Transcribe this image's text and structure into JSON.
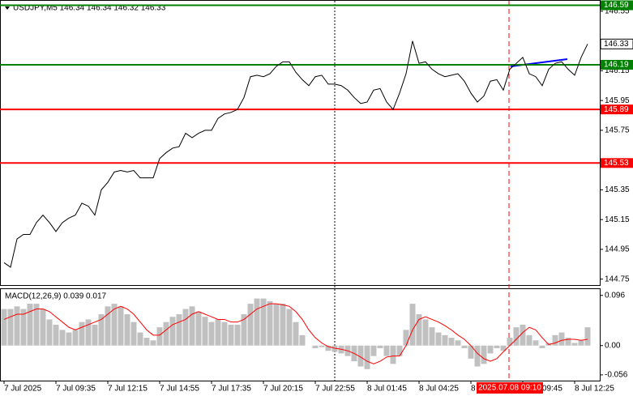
{
  "chart_data": [
    {
      "type": "line",
      "title": "USDJPY,M5  146.34 146.34 146.32 146.33",
      "color": "#000000",
      "x": [
        1,
        5,
        9,
        13,
        17,
        21,
        25,
        29,
        33,
        37,
        41,
        45,
        49,
        53,
        57,
        61,
        65,
        69,
        73,
        77,
        81,
        85,
        89,
        93,
        97,
        101,
        105,
        109,
        113,
        117,
        121,
        125,
        129,
        133,
        137,
        141,
        145,
        149,
        153,
        157,
        161,
        165,
        169,
        173,
        177,
        181,
        185,
        189,
        193,
        197,
        201,
        205,
        209,
        213,
        217,
        221,
        225,
        229,
        233,
        237,
        241,
        245,
        249,
        253,
        257,
        261,
        265,
        269,
        273,
        277,
        281,
        285,
        289,
        293,
        297,
        301,
        305,
        309,
        313,
        317,
        321,
        325,
        329,
        333,
        337,
        341,
        345,
        349,
        353,
        357,
        361
      ],
      "values": [
        144.86,
        144.83,
        145.02,
        145.05,
        145.05,
        145.13,
        145.18,
        145.13,
        145.07,
        145.13,
        145.16,
        145.18,
        145.26,
        145.24,
        145.18,
        145.35,
        145.4,
        145.47,
        145.48,
        145.47,
        145.48,
        145.43,
        145.43,
        145.43,
        145.56,
        145.6,
        145.63,
        145.64,
        145.73,
        145.7,
        145.73,
        145.75,
        145.75,
        145.83,
        145.86,
        145.87,
        145.89,
        145.97,
        146.11,
        146.12,
        146.11,
        146.13,
        146.18,
        146.21,
        146.21,
        146.14,
        146.09,
        146.05,
        146.11,
        146.12,
        146.06,
        146.06,
        146.05,
        146.02,
        145.97,
        145.93,
        145.94,
        146.02,
        146.03,
        145.94,
        145.89,
        146.0,
        146.13,
        146.35,
        146.2,
        146.21,
        146.16,
        146.13,
        146.11,
        146.12,
        146.13,
        146.08,
        146.0,
        145.94,
        145.98,
        146.08,
        146.09,
        146.02,
        146.16,
        146.2,
        146.24,
        146.13,
        146.11,
        146.05,
        146.16,
        146.2,
        146.21,
        146.16,
        146.12,
        146.24,
        146.33
      ],
      "xlim": [
        -1.5,
        368.5
      ],
      "xticks": [
        {
          "value": 1,
          "label": "7 Jul 2025"
        },
        {
          "value": 33,
          "label": "7 Jul 09:35"
        },
        {
          "value": 65,
          "label": "7 Jul 12:15"
        },
        {
          "value": 97,
          "label": "7 Jul 14:55"
        },
        {
          "value": 129,
          "label": "7 Jul 17:35"
        },
        {
          "value": 161,
          "label": "7 Jul 20:15"
        },
        {
          "value": 193,
          "label": "7 Jul 22:55"
        },
        {
          "value": 225,
          "label": "8 Jul 01:45"
        },
        {
          "value": 257,
          "label": "8 Jul 04:25"
        },
        {
          "value": 289,
          "label": "8 Jul 07:05"
        },
        {
          "value": 321,
          "label": "8 Jul 09:45"
        },
        {
          "value": 353,
          "label": "8 Jul 12:25"
        }
      ],
      "ylim": [
        144.71,
        146.62
      ],
      "yticks": [
        146.55,
        146.15,
        145.95,
        145.75,
        145.35,
        145.15,
        144.95,
        144.75
      ],
      "levels": [
        {
          "value": 146.59,
          "color": "#008000"
        },
        {
          "value": 146.19,
          "color": "#008000"
        },
        {
          "value": 145.89,
          "color": "#ff0000"
        },
        {
          "value": 145.53,
          "color": "#ff0000"
        }
      ],
      "last_price": 146.33,
      "crosshair_label": "2025.07.08 09:10"
    },
    {
      "type": "bar",
      "title": "MACD(12,26,9) 0.039 0.017",
      "series": [
        {
          "type": "bar",
          "color": "#c0c0c0",
          "values": [
            0.07,
            0.07,
            0.075,
            0.07,
            0.08,
            0.08,
            0.07,
            0.05,
            0.04,
            0.03,
            0.025,
            0.03,
            0.045,
            0.05,
            0.04,
            0.06,
            0.075,
            0.08,
            0.075,
            0.06,
            0.045,
            0.025,
            0.015,
            0.01,
            0.035,
            0.045,
            0.055,
            0.06,
            0.07,
            0.075,
            0.065,
            0.055,
            0.045,
            0.05,
            0.045,
            0.04,
            0.04,
            0.06,
            0.08,
            0.09,
            0.09,
            0.085,
            0.08,
            0.08,
            0.07,
            0.045,
            0.02,
            0.0,
            -0.005,
            -0.003,
            -0.01,
            -0.012,
            -0.015,
            -0.02,
            -0.03,
            -0.04,
            -0.045,
            -0.02,
            -0.005,
            -0.02,
            -0.035,
            -0.02,
            0.03,
            0.08,
            0.06,
            0.05,
            0.035,
            0.025,
            0.02,
            0.015,
            0.01,
            -0.005,
            -0.025,
            -0.04,
            -0.035,
            -0.015,
            -0.005,
            -0.01,
            0.015,
            0.035,
            0.04,
            0.02,
            0.01,
            -0.005,
            0.005,
            0.02,
            0.025,
            0.015,
            0.005,
            0.01,
            0.035
          ]
        },
        {
          "type": "line",
          "color": "#ff0000",
          "values": [
            0.05,
            0.055,
            0.06,
            0.06,
            0.065,
            0.07,
            0.07,
            0.065,
            0.055,
            0.045,
            0.035,
            0.03,
            0.035,
            0.04,
            0.045,
            0.05,
            0.06,
            0.07,
            0.075,
            0.07,
            0.06,
            0.045,
            0.03,
            0.02,
            0.02,
            0.03,
            0.04,
            0.045,
            0.05,
            0.06,
            0.065,
            0.06,
            0.055,
            0.05,
            0.05,
            0.045,
            0.045,
            0.05,
            0.06,
            0.07,
            0.075,
            0.08,
            0.08,
            0.078,
            0.075,
            0.065,
            0.05,
            0.03,
            0.015,
            0.005,
            -0.002,
            -0.005,
            -0.007,
            -0.01,
            -0.015,
            -0.022,
            -0.03,
            -0.035,
            -0.03,
            -0.022,
            -0.02,
            -0.02,
            0.0,
            0.03,
            0.05,
            0.055,
            0.05,
            0.045,
            0.038,
            0.03,
            0.02,
            0.012,
            0.0,
            -0.015,
            -0.025,
            -0.03,
            -0.025,
            -0.012,
            0.0,
            0.012,
            0.025,
            0.035,
            0.03,
            0.015,
            0.002,
            0.005,
            0.01,
            0.012,
            0.012,
            0.01,
            0.012
          ]
        }
      ],
      "ylim": [
        -0.067,
        0.108
      ],
      "yticks": [
        0.096,
        {
          "value": 0,
          "label": "0.00"
        },
        -0.056
      ]
    }
  ]
}
